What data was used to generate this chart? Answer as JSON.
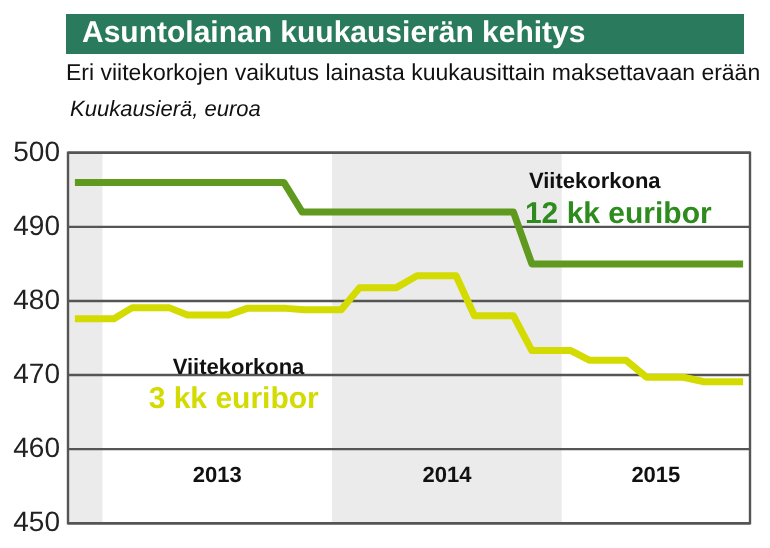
{
  "chart_data": {
    "type": "line",
    "title": "Asuntolainan kuukausierän kehitys",
    "subtitle": "Eri viitekorkojen vaikutus lainasta kuukausittain maksettavaan erään",
    "ylabel": "Kuukausierä, euroa",
    "series": [
      {
        "name": "12 kk euribor",
        "color": "#5f9a1f",
        "x": [
          2012.88,
          2013.79,
          2013.87,
          2014.79,
          2014.87,
          2015.79
        ],
        "values": [
          496,
          496,
          492,
          492,
          485,
          485
        ]
      },
      {
        "name": "3 kk euribor",
        "color": "#d3db00",
        "x": [
          2012.88,
          2013.05,
          2013.13,
          2013.29,
          2013.37,
          2013.55,
          2013.63,
          2013.8,
          2013.88,
          2014.04,
          2014.12,
          2014.28,
          2014.37,
          2014.54,
          2014.62,
          2014.79,
          2014.87,
          2015.04,
          2015.12,
          2015.28,
          2015.37,
          2015.53,
          2015.62,
          2015.79
        ],
        "values": [
          477.6,
          477.6,
          479.1,
          479.1,
          478.1,
          478.1,
          479,
          479,
          478.8,
          478.8,
          481.8,
          481.8,
          483.4,
          483.4,
          478,
          478,
          473.3,
          473.3,
          472,
          472,
          469.7,
          469.7,
          469.1,
          469.1
        ]
      }
    ],
    "annotations": [
      "Viitekorkona",
      "Viitekorkona"
    ],
    "xlim": [
      2012.85,
      2015.82
    ],
    "xticks": [
      {
        "value": 2013.5,
        "label": "2013"
      },
      {
        "value": 2014.5,
        "label": "2014"
      },
      {
        "value": 2015.41,
        "label": "2015"
      }
    ],
    "ylim": [
      450,
      500
    ],
    "yticks": [
      450,
      460,
      470,
      480,
      490,
      500
    ],
    "bands": [
      {
        "axis": "x",
        "from": 2012.85,
        "to": 2013,
        "color": "#ebebeb"
      },
      {
        "axis": "x",
        "from": 2014,
        "to": 2015,
        "color": "#ebebeb"
      }
    ],
    "grid": "y",
    "legend": false,
    "marker": "none",
    "line_style": "solid"
  }
}
